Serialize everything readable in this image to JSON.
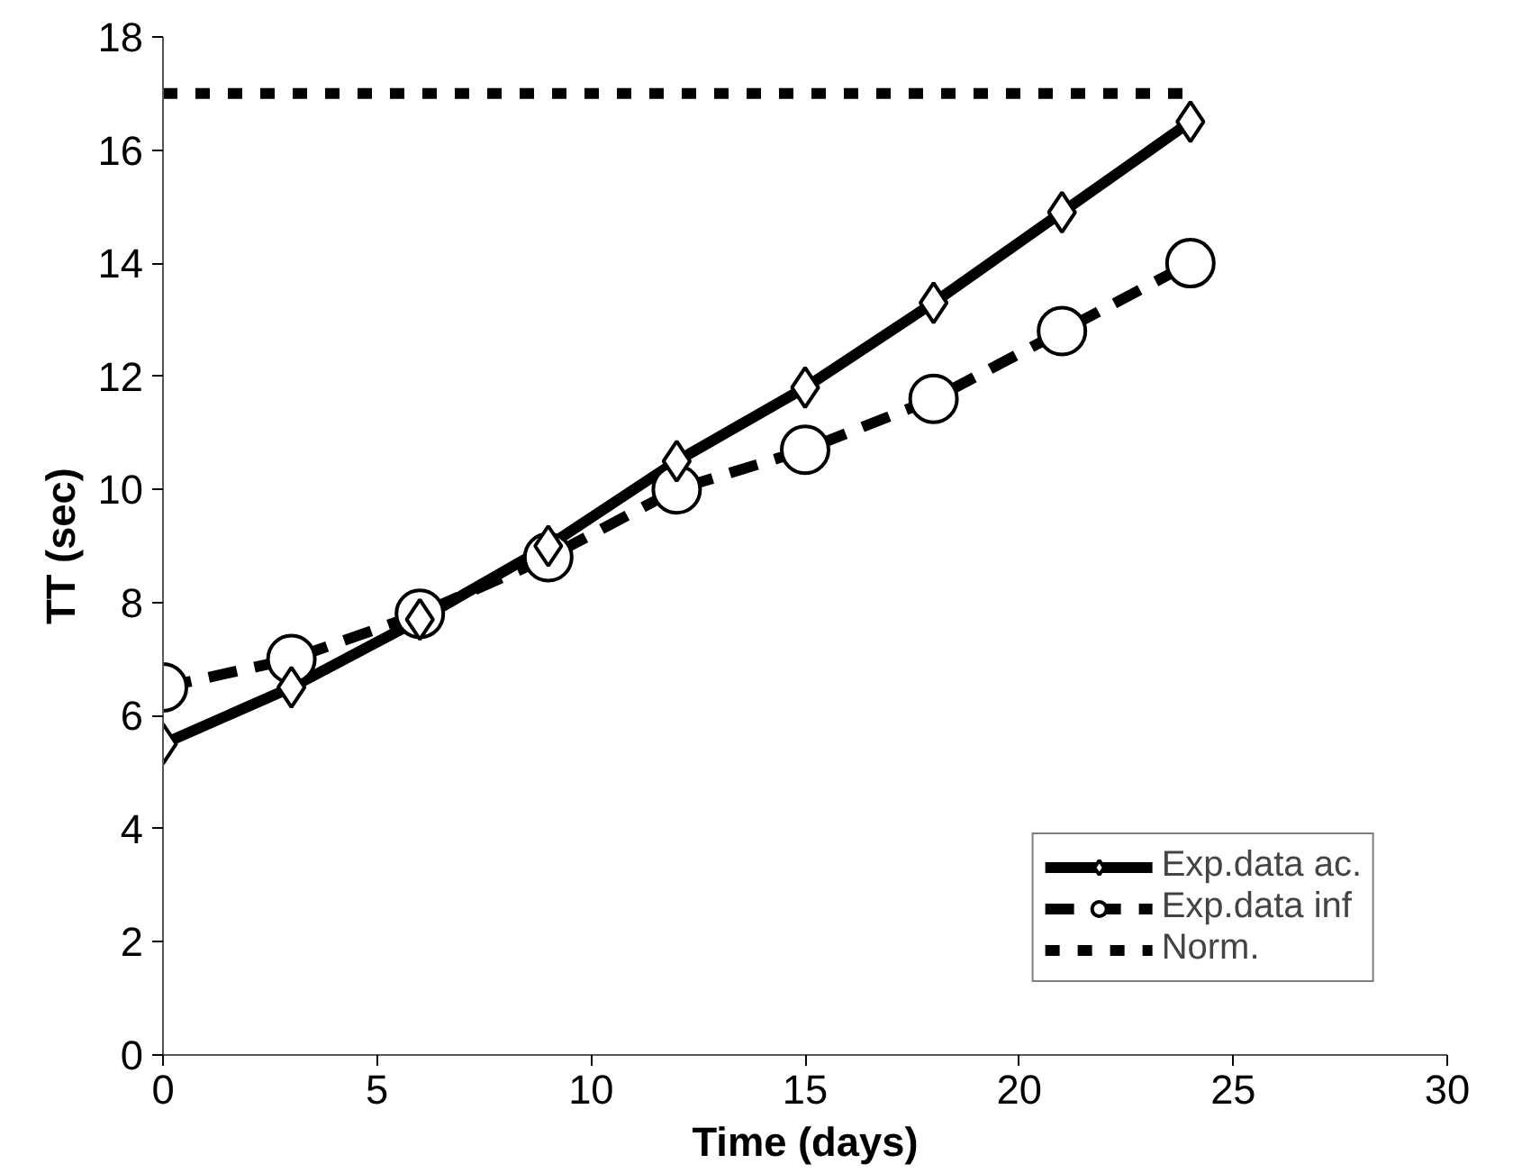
{
  "chart_data": {
    "type": "line",
    "xlabel": "Time (days)",
    "ylabel": "TT (sec)",
    "x": [
      0,
      3,
      6,
      9,
      12,
      15,
      18,
      21,
      24
    ],
    "series": [
      {
        "name": "Exp.data ac.",
        "color": "#000000",
        "marker": "diamond",
        "line_style": "solid",
        "values": [
          5.5,
          6.5,
          7.7,
          9.0,
          10.5,
          11.8,
          13.3,
          14.9,
          16.5
        ]
      },
      {
        "name": "Exp.data inf",
        "color": "#000000",
        "marker": "circle",
        "line_style": "dashed",
        "values": [
          6.5,
          7.0,
          7.8,
          8.8,
          10.0,
          10.7,
          11.6,
          12.8,
          14.0
        ]
      },
      {
        "name": "Norm.",
        "color": "#000000",
        "marker": "none",
        "line_style": "dotted",
        "x": [
          0,
          24
        ],
        "values": [
          17,
          17
        ]
      }
    ],
    "xlim": [
      0,
      30
    ],
    "xticks": [
      0,
      5,
      10,
      15,
      20,
      25,
      30
    ],
    "ylim": [
      0,
      18
    ],
    "yticks": [
      0,
      2,
      4,
      6,
      8,
      10,
      12,
      14,
      16,
      18
    ],
    "grid": false,
    "legend": "bottom right"
  }
}
